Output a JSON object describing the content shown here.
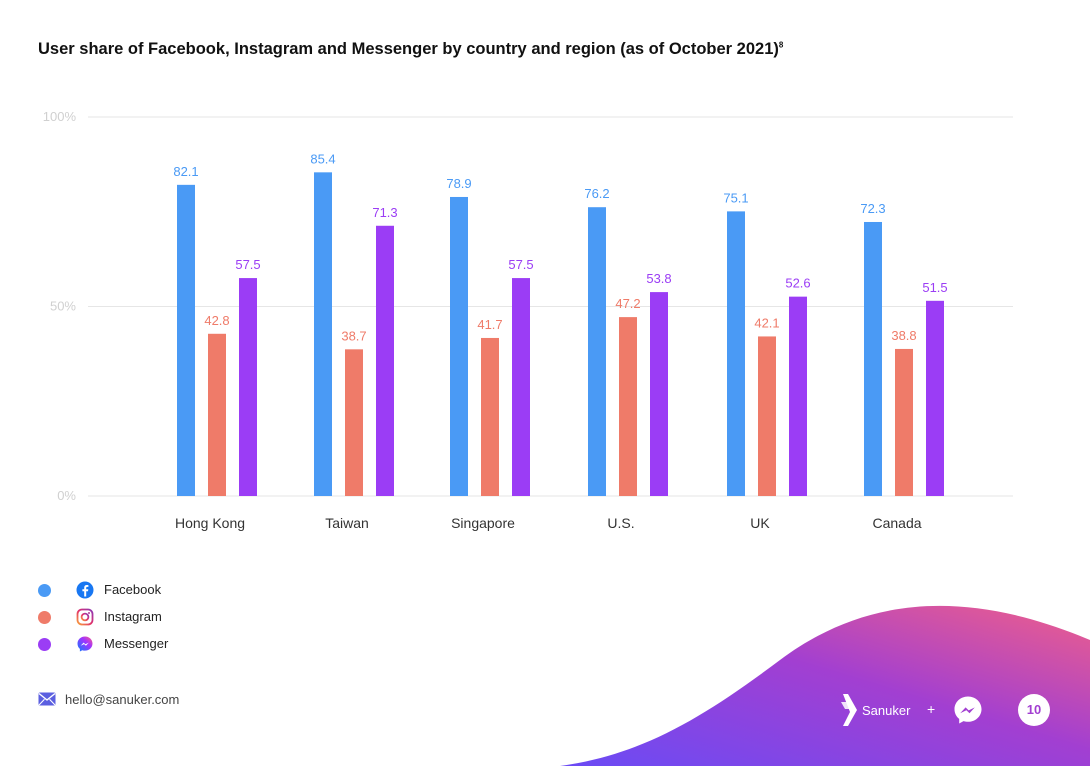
{
  "title": "User share of Facebook, Instagram and Messenger by country and region (as of October 2021)",
  "title_footnote": "8",
  "chart_data": {
    "type": "bar",
    "title": "User share of Facebook, Instagram and Messenger by country and region (as of October 2021)",
    "categories": [
      "Hong Kong",
      "Taiwan",
      "Singapore",
      "U.S.",
      "UK",
      "Canada"
    ],
    "series": [
      {
        "name": "Facebook",
        "values": [
          82.1,
          85.4,
          78.9,
          76.2,
          75.1,
          72.3
        ],
        "color": "#4a9af5"
      },
      {
        "name": "Instagram",
        "values": [
          42.8,
          38.7,
          41.7,
          47.2,
          42.1,
          38.8
        ],
        "color": "#ef7b69"
      },
      {
        "name": "Messenger",
        "values": [
          57.5,
          71.3,
          57.5,
          53.8,
          52.6,
          51.5
        ],
        "color": "#9b3df5"
      }
    ],
    "y_ticks": [
      "0%",
      "50%",
      "100%"
    ],
    "ylim": [
      0,
      100
    ],
    "grid": true,
    "legend_position": "bottom-left",
    "data_labels": true
  },
  "legend": [
    {
      "label": "Facebook",
      "color": "#4a9af5",
      "icon": "facebook-icon"
    },
    {
      "label": "Instagram",
      "color": "#ef7b69",
      "icon": "instagram-icon"
    },
    {
      "label": "Messenger",
      "color": "#9b3df5",
      "icon": "messenger-icon"
    }
  ],
  "footer": {
    "email": "hello@sanuker.com",
    "brand_name": "Sanuker",
    "plus": "+",
    "page_number": "10"
  },
  "colors": {
    "grid": "#e6e6e6",
    "tick_text": "#d0d0d0",
    "wave_start": "#6a4bf5",
    "wave_mid": "#a23fd1",
    "wave_end": "#ef5f8a"
  }
}
